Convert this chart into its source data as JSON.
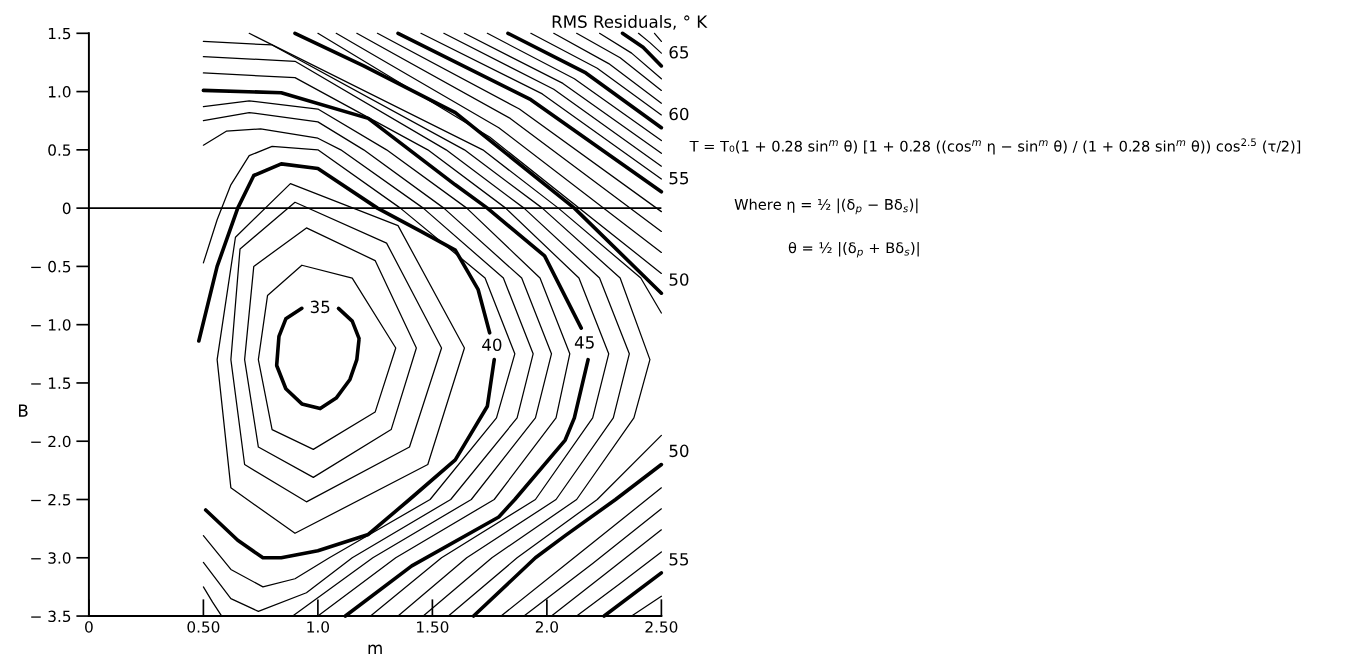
{
  "chart_data": {
    "type": "line",
    "title": "RMS Residuals, ° K",
    "xlabel": "m",
    "ylabel": "B",
    "xlim": [
      0,
      2.5
    ],
    "ylim": [
      -3.5,
      1.5
    ],
    "xticks": [
      0,
      {
        "value": 0.5,
        "label": "0.50"
      },
      {
        "value": 1.0,
        "label": "1.0"
      },
      {
        "value": 1.5,
        "label": "1.50"
      },
      {
        "value": 2.0,
        "label": "2.0"
      },
      {
        "value": 2.5,
        "label": "2.50"
      }
    ],
    "yticks": [
      {
        "value": 1.5,
        "label": "1.5"
      },
      {
        "value": 1.0,
        "label": "1.0"
      },
      {
        "value": 0.5,
        "label": "0.5"
      },
      0,
      {
        "value": -0.5,
        "label": "− 0.5"
      },
      {
        "value": -1.0,
        "label": "− 1.0"
      },
      {
        "value": -1.5,
        "label": "− 1.5"
      },
      {
        "value": -2.0,
        "label": "− 2.0"
      },
      {
        "value": -2.5,
        "label": "− 2.5"
      },
      {
        "value": -3.0,
        "label": "− 3.0"
      },
      {
        "value": -3.5,
        "label": "− 3.5"
      }
    ],
    "ref_lines": [
      {
        "axis": "y",
        "value": 0,
        "color": "#000000"
      }
    ],
    "annotations": [
      "T = T₀(1 + 0.28 sin$^{m}$ θ) [1 + 0.28 ((cos$^{m}$ η − sin$^{m}$ θ) / (1 + 0.28 sin$^{m}$ θ)) cos$^{2.5}$ (τ/2)]",
      "Where η = ½ |(δ$_{p}$ − Bδ$_{s}$)|",
      "θ = ½ |(δ$_{p}$ + Bδ$_{s}$)|"
    ],
    "series": [
      {
        "name": "35",
        "color": "#000000",
        "x": [
          0.82,
          0.83,
          0.86,
          0.93,
          null,
          1.09,
          1.15,
          1.18,
          null,
          0.82,
          0.86,
          0.93,
          1.01,
          1.08,
          1.14,
          1.17,
          1.18
        ],
        "values": [
          -1.35,
          -1.1,
          -0.95,
          -0.86,
          null,
          -0.86,
          -0.97,
          -1.12,
          null,
          -1.35,
          -1.55,
          -1.68,
          -1.72,
          -1.63,
          -1.47,
          -1.3,
          -1.12
        ]
      },
      {
        "color": "#000000",
        "x": [
          0.74,
          0.78,
          0.93,
          1.15,
          1.34,
          null,
          0.74,
          0.8,
          0.98,
          1.25,
          1.34
        ],
        "values": [
          -1.3,
          -0.75,
          -0.49,
          -0.6,
          -1.2,
          null,
          -1.3,
          -1.9,
          -2.07,
          -1.75,
          -1.2
        ]
      },
      {
        "color": "#000000",
        "x": [
          0.68,
          0.72,
          0.95,
          1.25,
          1.43,
          null,
          0.68,
          0.74,
          0.98,
          1.32,
          1.43
        ],
        "values": [
          -1.3,
          -0.5,
          -0.17,
          -0.45,
          -1.2,
          null,
          -1.3,
          -2.05,
          -2.31,
          -1.9,
          -1.2
        ]
      },
      {
        "color": "#000000",
        "x": [
          0.62,
          0.66,
          0.9,
          1.3,
          1.54,
          null,
          0.62,
          0.68,
          0.95,
          1.4,
          1.54
        ],
        "values": [
          -1.3,
          -0.35,
          0.05,
          -0.3,
          -1.2,
          null,
          -1.3,
          -2.2,
          -2.52,
          -2.05,
          -1.2
        ]
      },
      {
        "color": "#000000",
        "x": [
          0.56,
          0.64,
          0.88,
          1.35,
          1.64,
          null,
          0.56,
          0.62,
          0.9,
          1.48,
          1.64
        ],
        "values": [
          -1.3,
          -0.25,
          0.21,
          -0.15,
          -1.2,
          null,
          -1.3,
          -2.4,
          -2.79,
          -2.2,
          -1.2
        ]
      },
      {
        "name": "40",
        "color": "#000000",
        "x": [
          0.48,
          0.56,
          0.65,
          0.72,
          0.84,
          1.0,
          1.26,
          1.45,
          1.6,
          1.7,
          1.75,
          null,
          0.51,
          0.65,
          0.76,
          0.84,
          1.0,
          1.22,
          1.4,
          1.6,
          1.74,
          1.77
        ],
        "values": [
          -1.14,
          -0.5,
          0,
          0.28,
          0.38,
          0.34,
          0,
          -0.2,
          -0.36,
          -0.7,
          -1.07,
          null,
          -2.59,
          -2.85,
          -3.0,
          -3.0,
          -2.94,
          -2.8,
          -2.5,
          -2.16,
          -1.7,
          -1.3
        ]
      },
      {
        "color": "#000000",
        "x": [
          0.5,
          0.56,
          0.62,
          0.7,
          0.8,
          1.0,
          1.36,
          1.73,
          1.86,
          null,
          0.5,
          0.62,
          0.76,
          0.9,
          1.05,
          1.49,
          1.78,
          1.86
        ],
        "values": [
          -0.47,
          -0.1,
          0.2,
          0.45,
          0.53,
          0.5,
          0,
          -0.6,
          -1.25,
          null,
          -2.81,
          -3.1,
          -3.25,
          -3.18,
          -3.0,
          -2.5,
          -1.8,
          -1.25
        ]
      },
      {
        "color": "#000000",
        "x": [
          0.5,
          0.6,
          0.75,
          1.0,
          1.1,
          1.46,
          1.81,
          1.94,
          null,
          0.5,
          0.62,
          0.74,
          0.95,
          1.15,
          1.58,
          1.87,
          1.94
        ],
        "values": [
          0.54,
          0.66,
          0.68,
          0.6,
          0.5,
          0,
          -0.6,
          -1.25,
          null,
          -3.04,
          -3.35,
          -3.46,
          -3.3,
          -3.0,
          -2.5,
          -1.8,
          -1.25
        ]
      },
      {
        "color": "#000000",
        "x": [
          0.5,
          0.7,
          1.0,
          1.2,
          1.55,
          1.89,
          2.02,
          null,
          0.89,
          1.24,
          1.67,
          1.95,
          2.02,
          null,
          0.5,
          0.54,
          0.58
        ],
        "values": [
          0.75,
          0.82,
          0.74,
          0.5,
          0,
          -0.6,
          -1.25,
          null,
          -3.5,
          -3.0,
          -2.5,
          -1.8,
          -1.25,
          null,
          -3.25,
          -3.38,
          -3.5
        ]
      },
      {
        "color": "#000000",
        "x": [
          0.5,
          0.7,
          1.0,
          1.3,
          1.65,
          1.97,
          2.1,
          null,
          1.0,
          1.34,
          1.77,
          2.04,
          2.1
        ],
        "values": [
          0.87,
          0.92,
          0.85,
          0.5,
          0,
          -0.6,
          -1.25,
          null,
          -3.5,
          -3.0,
          -2.5,
          -1.8,
          -1.25
        ]
      },
      {
        "name": "45",
        "color": "#000000",
        "x": [
          0.5,
          0.84,
          1.22,
          1.4,
          1.6,
          1.74,
          1.99,
          2.15,
          null,
          1.12,
          1.41,
          1.79,
          1.86,
          2.08,
          2.12,
          2.18
        ],
        "values": [
          1.01,
          0.99,
          0.77,
          0.5,
          0.2,
          0,
          -0.41,
          -1.03,
          null,
          -3.5,
          -3.07,
          -2.65,
          -2.5,
          -1.99,
          -1.8,
          -1.3
        ]
      },
      {
        "color": "#000000",
        "x": [
          0.5,
          0.9,
          1.48,
          1.82,
          2.14,
          2.27,
          null,
          1.23,
          1.54,
          1.95,
          2.2,
          2.27
        ],
        "values": [
          1.16,
          1.12,
          0.5,
          0,
          -0.6,
          -1.25,
          null,
          -3.5,
          -3.0,
          -2.5,
          -1.8,
          -1.25
        ]
      },
      {
        "color": "#000000",
        "x": [
          0.5,
          0.9,
          1.56,
          1.9,
          2.23,
          2.36,
          null,
          1.35,
          1.65,
          2.04,
          2.29,
          2.36
        ],
        "values": [
          1.3,
          1.26,
          0.5,
          0,
          -0.6,
          -1.25,
          null,
          -3.5,
          -3.0,
          -2.5,
          -1.8,
          -1.25
        ]
      },
      {
        "color": "#000000",
        "x": [
          0.5,
          0.8,
          1.64,
          1.98,
          2.32,
          2.45,
          null,
          1.46,
          1.76,
          2.13,
          2.38,
          2.45
        ],
        "values": [
          1.43,
          1.4,
          0.5,
          0,
          -0.6,
          -1.3,
          null,
          -3.5,
          -3.0,
          -2.5,
          -1.8,
          -1.3
        ]
      },
      {
        "color": "#000000",
        "x": [
          0.7,
          1.72,
          2.05,
          2.41,
          2.5,
          null,
          1.57,
          1.87,
          2.22,
          2.5
        ],
        "values": [
          1.5,
          0.5,
          0,
          -0.6,
          -0.9,
          null,
          -3.5,
          -3.0,
          -2.5,
          -1.95
        ]
      },
      {
        "name": "50",
        "color": "#000000",
        "x": [
          0.9,
          1.2,
          1.6,
          2.12,
          2.5
        ],
        "values": [
          1.5,
          1.22,
          0.82,
          0,
          -0.73
        ]
      },
      {
        "color": "#000000",
        "x": [
          1.0,
          1.75,
          2.5
        ],
        "values": [
          1.5,
          0.61,
          -0.56
        ]
      },
      {
        "color": "#000000",
        "x": [
          1.08,
          1.79,
          2.5
        ],
        "values": [
          1.5,
          0.69,
          -0.38
        ]
      },
      {
        "color": "#000000",
        "x": [
          1.17,
          1.84,
          2.5
        ],
        "values": [
          1.5,
          0.77,
          -0.2
        ]
      },
      {
        "color": "#000000",
        "x": [
          1.26,
          1.88,
          2.5
        ],
        "values": [
          1.5,
          0.85,
          -0.03
        ]
      },
      {
        "name": "55",
        "color": "#000000",
        "x": [
          1.35,
          1.93,
          2.5
        ],
        "values": [
          1.5,
          0.93,
          0.14
        ]
      },
      {
        "color": "#000000",
        "x": [
          1.45,
          1.98,
          2.5
        ],
        "values": [
          1.5,
          0.98,
          0.25
        ]
      },
      {
        "color": "#000000",
        "x": [
          1.55,
          2.03,
          2.5
        ],
        "values": [
          1.5,
          1.02,
          0.36
        ]
      },
      {
        "color": "#000000",
        "x": [
          1.64,
          2.07,
          2.5
        ],
        "values": [
          1.5,
          1.07,
          0.47
        ]
      },
      {
        "color": "#000000",
        "x": [
          1.74,
          2.12,
          2.5
        ],
        "values": [
          1.5,
          1.11,
          0.58
        ]
      },
      {
        "name": "60",
        "color": "#000000",
        "x": [
          1.83,
          2.17,
          2.5
        ],
        "values": [
          1.5,
          1.16,
          0.69
        ]
      },
      {
        "color": "#000000",
        "x": [
          1.93,
          2.22,
          2.5
        ],
        "values": [
          1.5,
          1.2,
          0.8
        ]
      },
      {
        "color": "#000000",
        "x": [
          2.03,
          2.27,
          2.5
        ],
        "values": [
          1.5,
          1.24,
          0.9
        ]
      },
      {
        "color": "#000000",
        "x": [
          2.13,
          2.32,
          2.5
        ],
        "values": [
          1.5,
          1.29,
          1.01
        ]
      },
      {
        "color": "#000000",
        "x": [
          2.23,
          2.37,
          2.5
        ],
        "values": [
          1.5,
          1.33,
          1.11
        ]
      },
      {
        "name": "65",
        "color": "#000000",
        "x": [
          2.33,
          2.42,
          2.5
        ],
        "values": [
          1.5,
          1.38,
          1.22
        ]
      },
      {
        "color": "#000000",
        "x": [
          2.4,
          2.45,
          2.5
        ],
        "values": [
          1.5,
          1.42,
          1.33
        ]
      },
      {
        "color": "#000000",
        "x": [
          2.47,
          2.5
        ],
        "values": [
          1.5,
          1.43
        ]
      },
      {
        "name": "50",
        "color": "#000000",
        "x": [
          1.68,
          1.95,
          2.08,
          2.3,
          2.5
        ],
        "values": [
          -3.5,
          -3.0,
          -2.81,
          -2.5,
          -2.2
        ]
      },
      {
        "color": "#000000",
        "x": [
          1.8,
          2.15,
          2.5
        ],
        "values": [
          -3.5,
          -2.95,
          -2.4
        ]
      },
      {
        "color": "#000000",
        "x": [
          1.9,
          2.2,
          2.5
        ],
        "values": [
          -3.5,
          -3.05,
          -2.58
        ]
      },
      {
        "color": "#000000",
        "x": [
          2.02,
          2.26,
          2.5
        ],
        "values": [
          -3.5,
          -3.13,
          -2.76
        ]
      },
      {
        "color": "#000000",
        "x": [
          2.13,
          2.32,
          2.5
        ],
        "values": [
          -3.5,
          -3.22,
          -2.95
        ]
      },
      {
        "name": "55",
        "color": "#000000",
        "x": [
          2.25,
          2.5
        ],
        "values": [
          -3.5,
          -3.13
        ]
      },
      {
        "color": "#000000",
        "x": [
          2.37,
          2.5
        ],
        "values": [
          -3.5,
          -3.33
        ]
      }
    ]
  }
}
